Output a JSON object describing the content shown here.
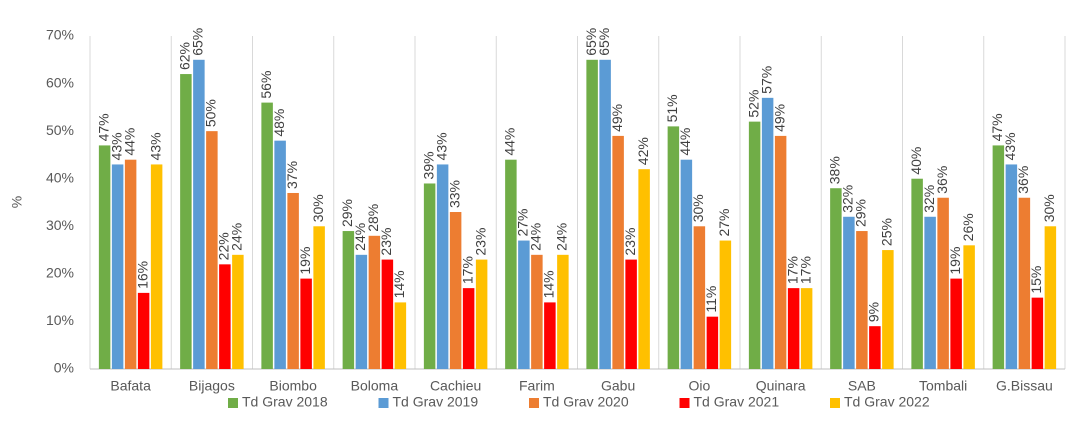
{
  "chart_data": {
    "type": "bar",
    "y_label": "%",
    "categories": [
      "Bafata",
      "Bijagos",
      "Biombo",
      "Boloma",
      "Cachieu",
      "Farim",
      "Gabu",
      "Oio",
      "Quinara",
      "SAB",
      "Tombali",
      "G.Bissau"
    ],
    "series": [
      {
        "name": "Td Grav 2018",
        "color": "#70ad47",
        "values": [
          47,
          62,
          56,
          29,
          39,
          44,
          65,
          51,
          52,
          38,
          40,
          47
        ],
        "value_labels": [
          "47%",
          "62%",
          "56%",
          "29%",
          "39%",
          "44%",
          "65%",
          "51%",
          "52%",
          "38%",
          "40%",
          "47%"
        ]
      },
      {
        "name": "Td Grav 2019",
        "color": "#5b9bd5",
        "values": [
          43,
          65,
          48,
          24,
          43,
          27,
          65,
          44,
          57,
          32,
          32,
          43
        ],
        "value_labels": [
          "43%",
          "65%",
          "48%",
          "24%",
          "43%",
          "27%",
          "65%",
          "44%",
          "57%",
          "32%",
          "32%",
          "43%"
        ]
      },
      {
        "name": "Td Grav 2020",
        "color": "#ed7d31",
        "values": [
          44,
          50,
          37,
          28,
          33,
          24,
          49,
          30,
          49,
          29,
          36,
          36
        ],
        "value_labels": [
          "44%",
          "50%",
          "37%",
          "28%",
          "33%",
          "24%",
          "49%",
          "30%",
          "49%",
          "29%",
          "36%",
          "36%"
        ]
      },
      {
        "name": "Td Grav 2021",
        "color": "#ff0000",
        "values": [
          16,
          22,
          19,
          23,
          17,
          14,
          23,
          11,
          17,
          9,
          19,
          15
        ],
        "value_labels": [
          "16%",
          "22%",
          "19%",
          "23%",
          "17%",
          "14%",
          "23%",
          "11%",
          "17%",
          "9%",
          "19%",
          "15%"
        ]
      },
      {
        "name": "Td Grav 2022",
        "color": "#ffc000",
        "values": [
          43,
          24,
          30,
          14,
          23,
          24,
          42,
          27,
          17,
          25,
          26,
          30
        ],
        "value_labels": [
          "43%",
          "24%",
          "30%",
          "14%",
          "23%",
          "24%",
          "42%",
          "27%",
          "17%",
          "25%",
          "26%",
          "30%"
        ]
      }
    ],
    "ylim": [
      0,
      70
    ],
    "yticks": [
      {
        "value": 0,
        "label": "0%"
      },
      {
        "value": 10,
        "label": "10%"
      },
      {
        "value": 20,
        "label": "20%"
      },
      {
        "value": 30,
        "label": "30%"
      },
      {
        "value": 40,
        "label": "40%"
      },
      {
        "value": 50,
        "label": "50%"
      },
      {
        "value": 60,
        "label": "60%"
      },
      {
        "value": 70,
        "label": "70%"
      }
    ],
    "legend": "bottom"
  }
}
